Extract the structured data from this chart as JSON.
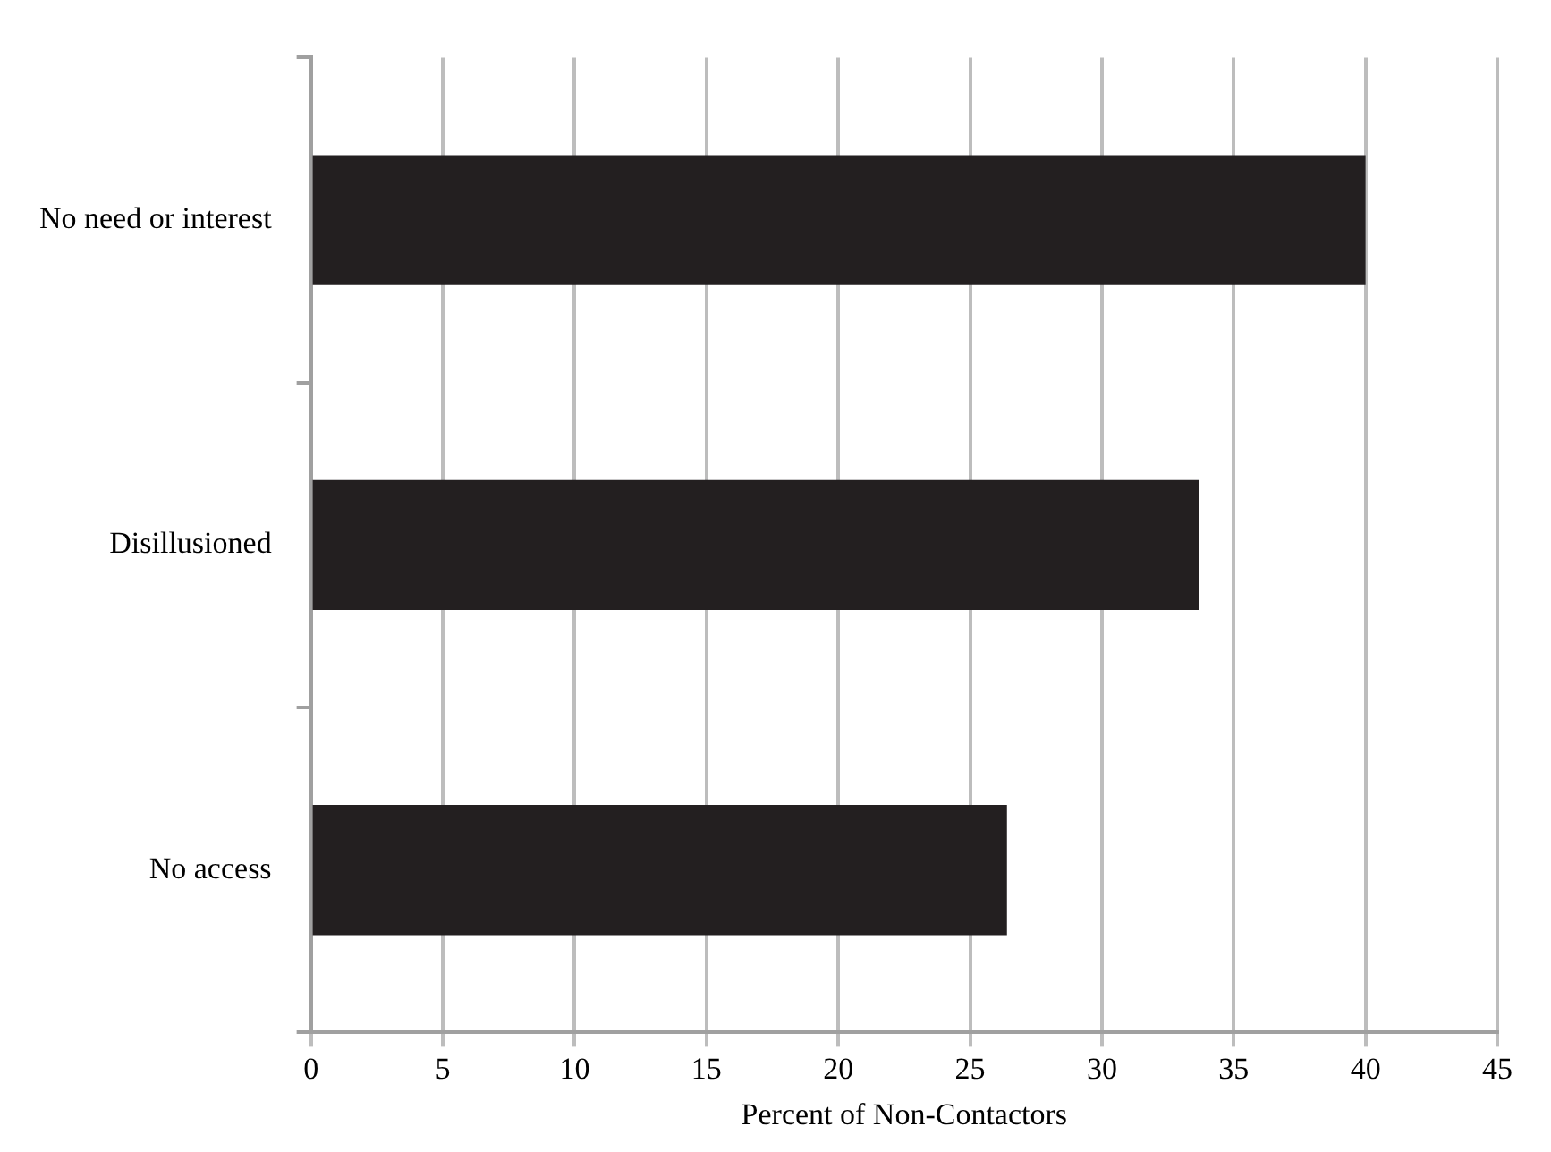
{
  "chart_data": {
    "type": "bar",
    "orientation": "horizontal",
    "xlabel": "Percent of Non-Contactors",
    "categories": [
      "No need or interest",
      "Disillusioned",
      "No access"
    ],
    "values": [
      40,
      33.7,
      26.4
    ],
    "color": "#231f20",
    "xlim": [
      0,
      45
    ],
    "xticks": [
      0,
      5,
      10,
      15,
      20,
      25,
      30,
      35,
      40,
      45
    ],
    "grid": "x",
    "legend": false
  }
}
